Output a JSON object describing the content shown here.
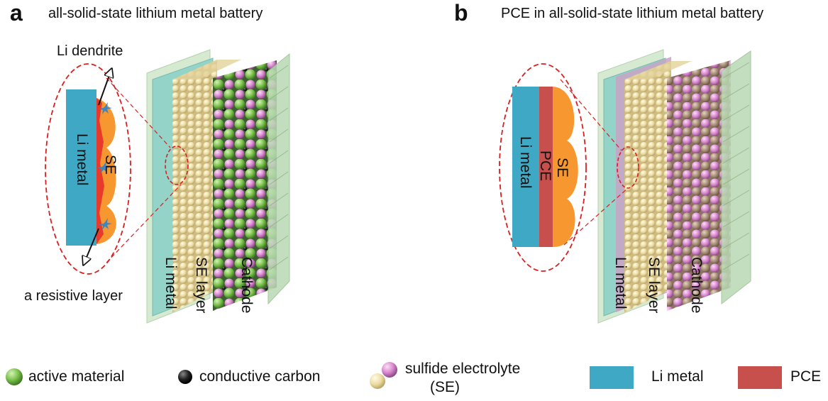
{
  "panels": [
    {
      "letter": "a",
      "title": "all-solid-state lithium metal battery",
      "callouts": {
        "dendrite": "Li dendrite",
        "resistive": "a resistive layer"
      },
      "inset_labels": {
        "li_metal": "Li metal",
        "se": "SE"
      },
      "layer_labels": [
        "Li metal",
        "SE layer",
        "Cathode"
      ]
    },
    {
      "letter": "b",
      "title": "PCE in all-solid-state lithium metal battery",
      "inset_labels": {
        "li_metal": "Li metal",
        "pce": "PCE",
        "se": "SE"
      },
      "layer_labels": [
        "Li metal",
        "SE layer",
        "Cathode"
      ]
    }
  ],
  "legend": [
    {
      "label": "active material",
      "icon": "green-sphere-icon"
    },
    {
      "label": "conductive carbon",
      "icon": "black-sphere-icon"
    },
    {
      "label": "sulfide electrolyte",
      "label_line2": "(SE)",
      "icon": "se-spheres-icon"
    },
    {
      "label": "Li metal",
      "icon": "li-metal-swatch"
    },
    {
      "label": "PCE",
      "icon": "pce-swatch"
    }
  ],
  "colors": {
    "li_metal": "#3fa9c5",
    "pce": "#c8504c",
    "se_sphere": "#efe0a8",
    "active_material": "#7cc24e",
    "conductive_carbon": "#222222",
    "sulfide_electrolyte_pink": "#d98ad0",
    "dashed_callout": "#d92020",
    "dendrite": "#3e86c0",
    "resistive_layer": "#e83a2a",
    "se_inset_orange": "#f7972f",
    "current_collector": "#b9d9b3"
  }
}
